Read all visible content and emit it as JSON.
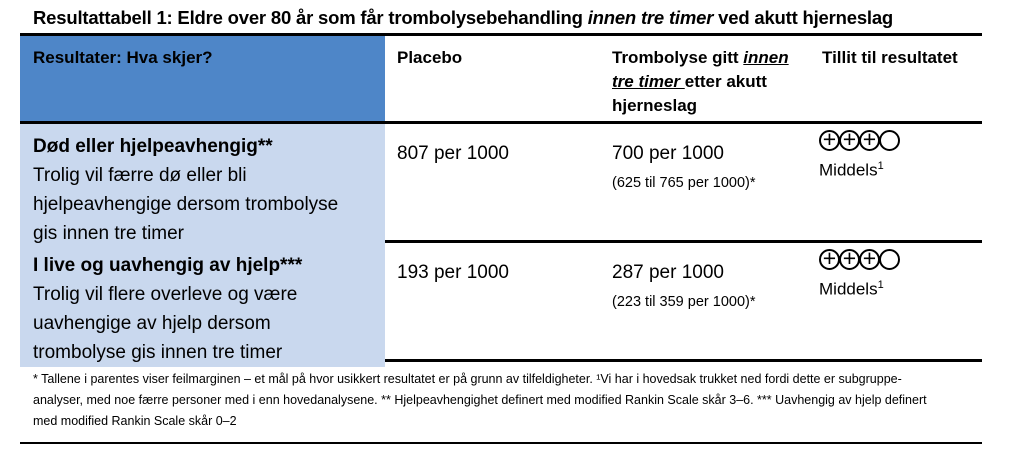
{
  "title": {
    "prefix": "Resultattabell 1: Eldre over 80 år som får trombolysebehandling ",
    "italic": "innen tre timer",
    "suffix": " ved akutt hjerneslag"
  },
  "header": {
    "outcome": "Resultater: Hva skjer?",
    "placebo": "Placebo",
    "intervention": {
      "prefix": "Trombolyse gitt ",
      "italic_underlined": "innen tre timer ",
      "suffix": "etter akutt hjerneslag"
    },
    "confidence": "Tillit til resultatet"
  },
  "rows": [
    {
      "heading": "Død eller hjelpeavhengig**",
      "description_lines": [
        "Trolig vil færre dø eller bli",
        "hjelpeavhengige dersom trombolyse",
        "gis innen tre timer"
      ],
      "placebo": "807 per 1000",
      "intervention": "700 per 1000",
      "intervention_ci": "(625 til 765 per 1000)*",
      "rating": {
        "filled": 3,
        "total": 4,
        "label": "Middels",
        "footnote_ref": "1"
      }
    },
    {
      "heading": "I live og uavhengig av hjelp***",
      "description_lines": [
        "Trolig vil flere overleve og være",
        "uavhengige av hjelp dersom",
        "trombolyse gis innen tre timer"
      ],
      "placebo": "193 per 1000",
      "intervention": "287 per 1000",
      "intervention_ci": "(223 til 359 per 1000)*",
      "rating": {
        "filled": 3,
        "total": 4,
        "label": "Middels",
        "footnote_ref": "1"
      }
    }
  ],
  "symbols": {
    "plus": "+"
  },
  "footnote": {
    "lines": [
      "* Tallene i parentes viser feilmarginen – et mål på hvor usikkert resultatet er på grunn av tilfeldigheter. ¹Vi har i hovedsak trukket ned fordi dette er subgruppe-",
      "analyser, med noe færre personer med i enn hovedanalysene. ** Hjelpeavhengighet definert med modified Rankin Scale skår 3–6. *** Uavhengig av hjelp definert",
      "med modified Rankin Scale skår 0–2"
    ]
  },
  "colors": {
    "header_blue": "#4E86C8",
    "row_light_blue": "#C9D8EE",
    "border_black": "#000000"
  }
}
